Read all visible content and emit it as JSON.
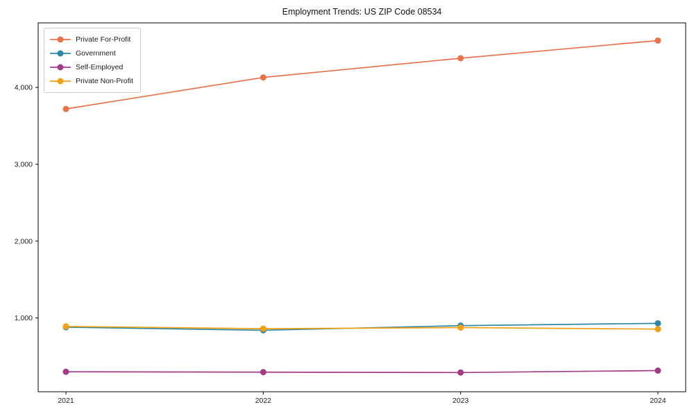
{
  "chart_data": {
    "type": "line",
    "title": "Employment Trends: US ZIP Code 08534",
    "xlabel": "",
    "ylabel": "",
    "categories": [
      "2021",
      "2022",
      "2023",
      "2024"
    ],
    "series": [
      {
        "name": "Private For-Profit",
        "color": "#e8734a",
        "values": [
          3720,
          4130,
          4380,
          4610
        ]
      },
      {
        "name": "Government",
        "color": "#2e87a5",
        "values": [
          880,
          840,
          900,
          930
        ]
      },
      {
        "name": "Self-Employed",
        "color": "#a33a86",
        "values": [
          300,
          295,
          290,
          315
        ]
      },
      {
        "name": "Private Non-Profit",
        "color": "#f2a113",
        "values": [
          890,
          860,
          875,
          855
        ]
      }
    ],
    "y_ticks": [
      1000,
      2000,
      3000,
      4000
    ],
    "y_tick_labels": [
      "1,000",
      "2,000",
      "3,000",
      "4,000"
    ],
    "ylim": [
      40,
      4840
    ],
    "grid": false,
    "legend_position": "upper-left",
    "frame_color": "#000000"
  }
}
